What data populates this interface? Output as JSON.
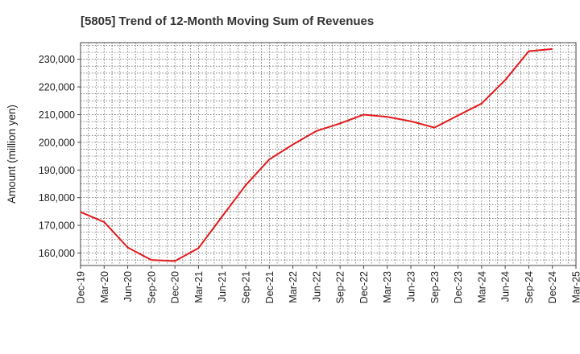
{
  "chart_data": {
    "type": "line",
    "title": "[5805]  Trend of 12-Month Moving Sum of Revenues",
    "xlabel": "",
    "ylabel": "Amount (million yen)",
    "ylim": [
      155500,
      236000
    ],
    "y_ticks": [
      160000,
      170000,
      180000,
      190000,
      200000,
      210000,
      220000,
      230000
    ],
    "y_tick_labels": [
      "160,000",
      "170,000",
      "180,000",
      "190,000",
      "200,000",
      "210,000",
      "220,000",
      "230,000"
    ],
    "x_tick_labels": [
      "Dec-19",
      "Mar-20",
      "Jun-20",
      "Sep-20",
      "Dec-20",
      "Mar-21",
      "Jun-21",
      "Sep-21",
      "Dec-21",
      "Mar-22",
      "Jun-22",
      "Sep-22",
      "Dec-22",
      "Mar-23",
      "Jun-23",
      "Sep-23",
      "Dec-23",
      "Mar-24",
      "Jun-24",
      "Sep-24",
      "Dec-24",
      "Mar-25"
    ],
    "grid": true,
    "series": [
      {
        "color": "#e31a1c",
        "x": [
          "Dec-19",
          "Mar-20",
          "Jun-20",
          "Sep-20",
          "Dec-20",
          "Mar-21",
          "Jun-21",
          "Sep-21",
          "Dec-21",
          "Mar-22",
          "Jun-22",
          "Sep-22",
          "Dec-22",
          "Mar-23",
          "Jun-23",
          "Sep-23",
          "Dec-23",
          "Mar-24",
          "Jun-24",
          "Sep-24",
          "Dec-24"
        ],
        "values": [
          174800,
          171200,
          162000,
          157500,
          157100,
          161800,
          173200,
          184500,
          193800,
          199200,
          204100,
          206800,
          210000,
          209200,
          207600,
          205300,
          209700,
          214000,
          222500,
          232900,
          233700
        ]
      }
    ]
  }
}
